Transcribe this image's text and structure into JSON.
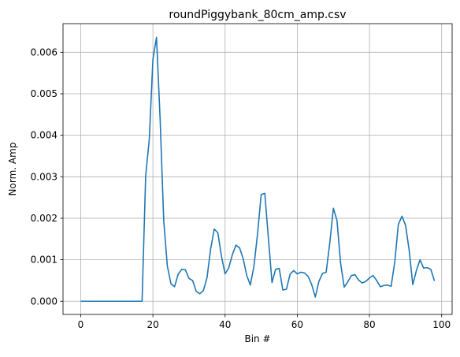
{
  "chart_data": {
    "type": "line",
    "title": "roundPiggybank_80cm_amp.csv",
    "xlabel": "Bin #",
    "ylabel": "Norm. Amp",
    "xlim": [
      -4.9,
      102.9
    ],
    "ylim": [
      -0.000318,
      0.00669
    ],
    "xticks": [
      0,
      20,
      40,
      60,
      80,
      100
    ],
    "yticks": [
      0.0,
      0.001,
      0.002,
      0.003,
      0.004,
      0.005,
      0.006
    ],
    "xtick_labels": [
      "0",
      "20",
      "40",
      "60",
      "80",
      "100"
    ],
    "ytick_labels": [
      "0.000",
      "0.001",
      "0.002",
      "0.003",
      "0.004",
      "0.005",
      "0.006"
    ],
    "grid": true,
    "line_color": "#1f77b4",
    "series": [
      {
        "x": [
          0,
          1,
          2,
          3,
          4,
          5,
          6,
          7,
          8,
          9,
          10,
          11,
          12,
          13,
          14,
          15,
          16,
          17,
          18,
          19,
          20,
          21,
          22,
          23,
          24,
          25,
          26,
          27,
          28,
          29,
          30,
          31,
          32,
          33,
          34,
          35,
          36,
          37,
          38,
          39,
          40,
          41,
          42,
          43,
          44,
          45,
          46,
          47,
          48,
          49,
          50,
          51,
          52,
          53,
          54,
          55,
          56,
          57,
          58,
          59,
          60,
          61,
          62,
          63,
          64,
          65,
          66,
          67,
          68,
          69,
          70,
          71,
          72,
          73,
          74,
          75,
          76,
          77,
          78,
          79,
          80,
          81,
          82,
          83,
          84,
          85,
          86,
          87,
          88,
          89,
          90,
          91,
          92,
          93,
          94,
          95,
          96,
          97,
          98
        ],
        "values": [
          0,
          0,
          0,
          0,
          0,
          0,
          0,
          0,
          0,
          0,
          0,
          0,
          0,
          0,
          0,
          0,
          0,
          0,
          0.00302,
          0.0039,
          0.00582,
          0.00636,
          0.0044,
          0.00195,
          0.00085,
          0.00042,
          0.00035,
          0.00065,
          0.00077,
          0.00076,
          0.00055,
          0.0005,
          0.00024,
          0.00018,
          0.00026,
          0.00057,
          0.00126,
          0.00174,
          0.00165,
          0.00108,
          0.00066,
          0.0008,
          0.00112,
          0.00135,
          0.00129,
          0.00103,
          0.00062,
          0.00039,
          0.00085,
          0.00163,
          0.00257,
          0.0026,
          0.00152,
          0.00045,
          0.00077,
          0.00079,
          0.00027,
          0.00029,
          0.00065,
          0.00074,
          0.00066,
          0.0007,
          0.00068,
          0.0006,
          0.0004,
          0.0001,
          0.00048,
          0.00067,
          0.0007,
          0.0014,
          0.00224,
          0.00195,
          0.00092,
          0.00034,
          0.00047,
          0.00062,
          0.00064,
          0.00051,
          0.00044,
          0.00048,
          0.00056,
          0.00062,
          0.0005,
          0.00035,
          0.00038,
          0.00039,
          0.00036,
          0.00094,
          0.00185,
          0.00205,
          0.00183,
          0.00123,
          0.0004,
          0.00074,
          0.001,
          0.0008,
          0.00081,
          0.00077,
          0.00049
        ]
      }
    ]
  }
}
